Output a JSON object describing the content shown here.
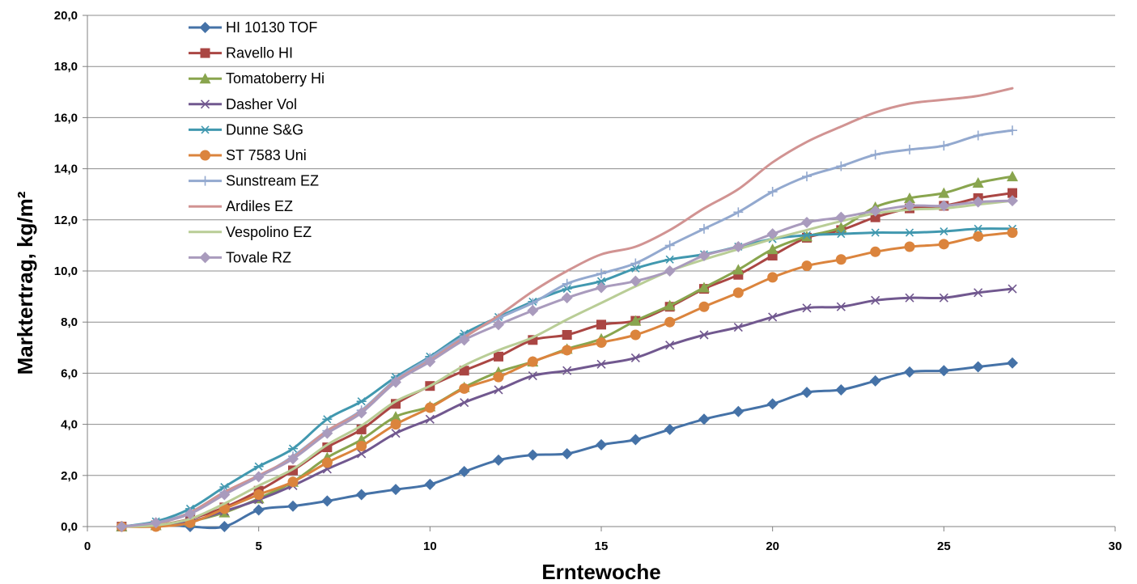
{
  "chart_data": {
    "type": "line",
    "title": "",
    "xlabel": "Erntewoche",
    "ylabel": "Marktertrag, kg/m²",
    "xlim": [
      0,
      30
    ],
    "ylim": [
      0,
      20
    ],
    "x_ticks": [
      "0",
      "5",
      "10",
      "15",
      "20",
      "25",
      "30"
    ],
    "y_ticks": [
      "0,0",
      "2,0",
      "4,0",
      "6,0",
      "8,0",
      "10,0",
      "12,0",
      "14,0",
      "16,0",
      "18,0",
      "20,0"
    ],
    "grid": "horizontal",
    "legend_position": "top-left",
    "x": [
      1,
      2,
      3,
      4,
      5,
      6,
      7,
      8,
      9,
      10,
      11,
      12,
      13,
      14,
      15,
      16,
      17,
      18,
      19,
      20,
      21,
      22,
      23,
      24,
      25,
      26,
      27
    ],
    "series": [
      {
        "name": "HI 10130 TOF",
        "color": "#4572A7",
        "marker": "diamond",
        "values": [
          0.0,
          0.1,
          0.0,
          0.0,
          0.65,
          0.8,
          1.0,
          1.25,
          1.45,
          1.65,
          2.15,
          2.6,
          2.8,
          2.85,
          3.2,
          3.4,
          3.8,
          4.2,
          4.5,
          4.8,
          5.25,
          5.35,
          5.7,
          6.05,
          6.1,
          6.25,
          6.4
        ]
      },
      {
        "name": "Ravello HI",
        "color": "#AA4643",
        "marker": "square",
        "values": [
          0.0,
          0.05,
          0.3,
          0.75,
          1.4,
          2.2,
          3.1,
          3.8,
          4.8,
          5.5,
          6.1,
          6.65,
          7.3,
          7.5,
          7.9,
          8.05,
          8.6,
          9.3,
          9.85,
          10.6,
          11.3,
          11.6,
          12.1,
          12.45,
          12.55,
          12.85,
          13.05
        ]
      },
      {
        "name": "Tomatoberry Hi",
        "color": "#89A54E",
        "marker": "triangle",
        "values": [
          0.0,
          0.05,
          0.2,
          0.55,
          1.1,
          1.75,
          2.7,
          3.4,
          4.3,
          4.7,
          5.45,
          6.05,
          6.45,
          6.95,
          7.35,
          8.05,
          8.65,
          9.35,
          10.05,
          10.85,
          11.35,
          11.7,
          12.5,
          12.85,
          13.05,
          13.45,
          13.7
        ]
      },
      {
        "name": "Dasher Vol",
        "color": "#71588F",
        "marker": "x",
        "values": [
          0.0,
          0.05,
          0.2,
          0.6,
          1.05,
          1.6,
          2.25,
          2.85,
          3.65,
          4.2,
          4.85,
          5.35,
          5.9,
          6.1,
          6.35,
          6.6,
          7.1,
          7.5,
          7.8,
          8.2,
          8.55,
          8.6,
          8.85,
          8.95,
          8.95,
          9.15,
          9.3
        ]
      },
      {
        "name": "Dunne S&G",
        "color": "#4198AF",
        "marker": "star",
        "values": [
          0.0,
          0.2,
          0.7,
          1.55,
          2.35,
          3.05,
          4.2,
          4.9,
          5.85,
          6.65,
          7.55,
          8.2,
          8.8,
          9.3,
          9.6,
          10.1,
          10.45,
          10.65,
          10.95,
          11.25,
          11.4,
          11.45,
          11.5,
          11.5,
          11.55,
          11.65,
          11.65
        ]
      },
      {
        "name": "ST 7583 Uni",
        "color": "#DB843D",
        "marker": "circle",
        "values": [
          0.0,
          0.0,
          0.15,
          0.7,
          1.25,
          1.75,
          2.5,
          3.15,
          4.0,
          4.65,
          5.4,
          5.85,
          6.45,
          6.9,
          7.2,
          7.5,
          8.0,
          8.6,
          9.15,
          9.75,
          10.2,
          10.45,
          10.75,
          10.95,
          11.05,
          11.35,
          11.5
        ]
      },
      {
        "name": "Sunstream EZ",
        "color": "#93A9CF",
        "marker": "plus",
        "values": [
          0.0,
          0.15,
          0.55,
          1.35,
          1.95,
          2.75,
          3.75,
          4.55,
          5.75,
          6.6,
          7.45,
          8.15,
          8.75,
          9.5,
          9.9,
          10.3,
          11.0,
          11.65,
          12.3,
          13.1,
          13.7,
          14.1,
          14.55,
          14.75,
          14.9,
          15.3,
          15.5
        ]
      },
      {
        "name": "Ardiles EZ",
        "color": "#D19392",
        "marker": "none",
        "values": [
          0.0,
          0.1,
          0.55,
          1.35,
          2.0,
          2.7,
          3.75,
          4.5,
          5.7,
          6.5,
          7.4,
          8.25,
          9.2,
          10.0,
          10.65,
          10.95,
          11.6,
          12.45,
          13.2,
          14.25,
          15.05,
          15.65,
          16.2,
          16.55,
          16.7,
          16.85,
          17.15
        ]
      },
      {
        "name": "Vespolino EZ",
        "color": "#B9CD96",
        "marker": "none",
        "values": [
          0.0,
          0.05,
          0.3,
          0.9,
          1.6,
          2.25,
          3.2,
          3.95,
          4.9,
          5.5,
          6.3,
          6.9,
          7.4,
          8.1,
          8.75,
          9.4,
          10.0,
          10.45,
          10.85,
          11.25,
          11.6,
          11.95,
          12.25,
          12.4,
          12.45,
          12.6,
          12.75
        ]
      },
      {
        "name": "Tovale RZ",
        "color": "#A99BBD",
        "marker": "diamond",
        "values": [
          0.0,
          0.15,
          0.5,
          1.25,
          1.95,
          2.65,
          3.65,
          4.45,
          5.65,
          6.45,
          7.3,
          7.9,
          8.45,
          8.95,
          9.35,
          9.6,
          10.0,
          10.6,
          10.95,
          11.45,
          11.9,
          12.1,
          12.35,
          12.55,
          12.55,
          12.7,
          12.75
        ]
      }
    ]
  }
}
